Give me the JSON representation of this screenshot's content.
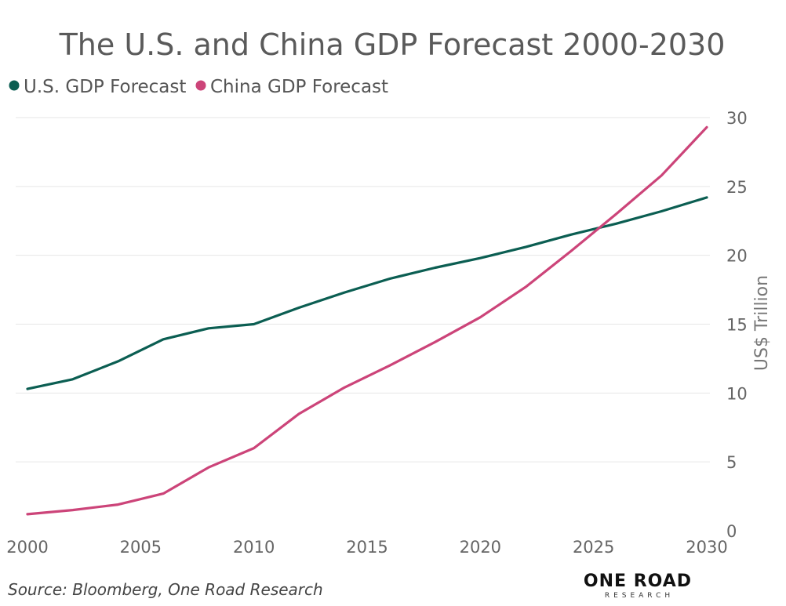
{
  "chart_data": {
    "type": "line",
    "title": "The U.S. and China GDP Forecast 2000-2030",
    "ylabel": "US$ Trillion",
    "xlim": [
      2000,
      2030
    ],
    "ylim": [
      0,
      30
    ],
    "x_ticks": [
      2000,
      2005,
      2010,
      2015,
      2020,
      2025,
      2030
    ],
    "y_ticks": [
      0,
      5,
      10,
      15,
      20,
      25,
      30
    ],
    "grid": true,
    "legend_position": "top-left",
    "x": [
      2000,
      2002,
      2004,
      2006,
      2008,
      2010,
      2012,
      2014,
      2016,
      2018,
      2020,
      2022,
      2024,
      2026,
      2028,
      2030
    ],
    "series": [
      {
        "name": "U.S. GDP Forecast",
        "color": "#0b5e52",
        "values": [
          10.3,
          11.0,
          12.3,
          13.9,
          14.7,
          15.0,
          16.2,
          17.3,
          18.3,
          19.1,
          19.8,
          20.6,
          21.5,
          22.3,
          23.2,
          24.2
        ]
      },
      {
        "name": "China GDP Forecast",
        "color": "#cc4479",
        "values": [
          1.2,
          1.5,
          1.9,
          2.7,
          4.6,
          6.0,
          8.5,
          10.4,
          12.0,
          13.7,
          15.5,
          17.7,
          20.3,
          23.0,
          25.8,
          29.3
        ]
      }
    ]
  },
  "footer": {
    "source": "Source: Bloomberg, One Road Research",
    "logo_main": "ONE ROAD",
    "logo_sub": "RESEARCH"
  }
}
